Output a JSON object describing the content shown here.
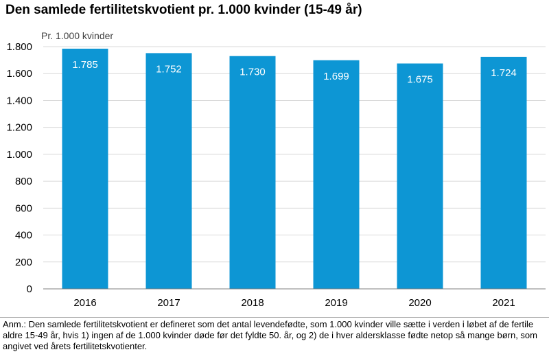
{
  "title": "Den samlede fertilitetskvotient pr. 1.000 kvinder (15-49 år)",
  "note": "Anm.: Den samlede fertilitetskvotient er defineret som det antal levendefødte, som 1.000 kvinder ville sætte i verden i løbet af de fertile aldre 15-49 år, hvis 1) ingen af de 1.000 kvinder døde før det fyldte 50. år, og 2) de i hver aldersklasse fødte netop så mange børn, som angivet ved årets fertilitetskvotienter.",
  "chart_data": {
    "type": "bar",
    "title": "Den samlede fertilitetskvotient pr. 1.000 kvinder (15-49 år)",
    "unit_label": "Pr. 1.000 kvinder",
    "categories": [
      "2016",
      "2017",
      "2018",
      "2019",
      "2020",
      "2021"
    ],
    "values": [
      1785,
      1752,
      1730,
      1699,
      1675,
      1724
    ],
    "value_labels": [
      "1.785",
      "1.752",
      "1.730",
      "1.699",
      "1.675",
      "1.724"
    ],
    "ylim": [
      0,
      1800
    ],
    "yticks": [
      0,
      200,
      400,
      600,
      800,
      1000,
      1200,
      1400,
      1600,
      1800
    ],
    "ytick_labels": [
      "0",
      "200",
      "400",
      "600",
      "800",
      "1.000",
      "1.200",
      "1.400",
      "1.600",
      "1.800"
    ],
    "grid": true,
    "bar_color": "#0d96d4",
    "label_color": "#ffffff"
  }
}
